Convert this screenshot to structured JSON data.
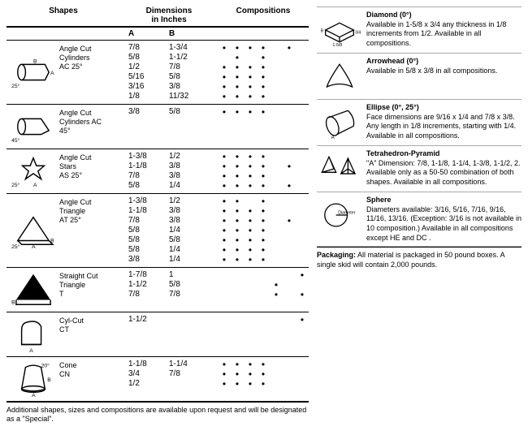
{
  "header": {
    "shapes": "Shapes",
    "dimensions": "Dimensions\nin Inches",
    "compositions": "Compositions",
    "colA": "A",
    "colB": "B"
  },
  "shapes": [
    {
      "name": "Angle Cut\nCylinders\nAC 25°",
      "svg": "cyl25",
      "rows": [
        {
          "a": "7/8",
          "b": "1-3/4",
          "dots": [
            1,
            1,
            1,
            1,
            0,
            1,
            0
          ]
        },
        {
          "a": "5/8",
          "b": "1-1/2",
          "dots": [
            0,
            1,
            0,
            1,
            0,
            0,
            0
          ]
        },
        {
          "a": "1/2",
          "b": "7/8",
          "dots": [
            1,
            1,
            1,
            1,
            0,
            0,
            0
          ]
        },
        {
          "a": "5/16",
          "b": "5/8",
          "dots": [
            1,
            1,
            1,
            1,
            0,
            0,
            0
          ]
        },
        {
          "a": "3/16",
          "b": "3/8",
          "dots": [
            1,
            1,
            1,
            1,
            0,
            0,
            0
          ]
        },
        {
          "a": "1/8",
          "b": "11/32",
          "dots": [
            1,
            1,
            1,
            1,
            0,
            0,
            0
          ]
        }
      ]
    },
    {
      "name": "Angle Cut\nCylinders AC\n45°",
      "svg": "cyl45",
      "rows": [
        {
          "a": "3/8",
          "b": "5/8",
          "dots": [
            1,
            1,
            1,
            1,
            0,
            0,
            0
          ]
        }
      ]
    },
    {
      "name": "Angle Cut\nStars\nAS 25°",
      "svg": "star",
      "rows": [
        {
          "a": "1-3/8",
          "b": "1/2",
          "dots": [
            1,
            1,
            1,
            1,
            0,
            0,
            0
          ]
        },
        {
          "a": "1-1/8",
          "b": "3/8",
          "dots": [
            1,
            1,
            1,
            1,
            0,
            1,
            0
          ]
        },
        {
          "a": "7/8",
          "b": "3/8",
          "dots": [
            1,
            1,
            1,
            1,
            0,
            0,
            0
          ]
        },
        {
          "a": "5/8",
          "b": "1/4",
          "dots": [
            1,
            1,
            1,
            1,
            0,
            1,
            0
          ]
        }
      ]
    },
    {
      "name": "Angle Cut\nTriangle\nAT 25°",
      "svg": "tri25",
      "rows": [
        {
          "a": "1-3/8",
          "b": "1/2",
          "dots": [
            1,
            1,
            0,
            1,
            0,
            0,
            0
          ]
        },
        {
          "a": "1-1/8",
          "b": "3/8",
          "dots": [
            1,
            1,
            1,
            1,
            0,
            0,
            0
          ]
        },
        {
          "a": "7/8",
          "b": "3/8",
          "dots": [
            1,
            1,
            1,
            1,
            0,
            1,
            0
          ]
        },
        {
          "a": "5/8",
          "b": "1/4",
          "dots": [
            1,
            1,
            1,
            1,
            0,
            0,
            0
          ]
        },
        {
          "a": "5/8",
          "b": "5/8",
          "dots": [
            1,
            1,
            1,
            1,
            0,
            0,
            0
          ]
        },
        {
          "a": "5/8",
          "b": "1/4",
          "dots": [
            1,
            1,
            1,
            1,
            0,
            0,
            0
          ]
        },
        {
          "a": "3/8",
          "b": "1/4",
          "dots": [
            1,
            1,
            1,
            1,
            0,
            0,
            0
          ]
        }
      ]
    },
    {
      "name": "Straight Cut\nTriangle\nT",
      "svg": "triS",
      "rows": [
        {
          "a": "1-7/8",
          "b": "1",
          "dots": [
            0,
            0,
            0,
            0,
            0,
            0,
            1
          ]
        },
        {
          "a": "1-1/2",
          "b": "5/8",
          "dots": [
            0,
            0,
            0,
            0,
            1,
            0,
            0
          ]
        },
        {
          "a": "7/8",
          "b": "7/8",
          "dots": [
            0,
            0,
            0,
            0,
            1,
            0,
            1
          ]
        }
      ]
    },
    {
      "name": "Cyl-Cut\nCT",
      "svg": "cylcut",
      "rows": [
        {
          "a": "1-1/2",
          "b": "",
          "dots": [
            0,
            0,
            0,
            0,
            0,
            0,
            1
          ]
        }
      ]
    },
    {
      "name": "Cone\nCN",
      "svg": "cone",
      "rows": [
        {
          "a": "1-1/8",
          "b": "1-1/4",
          "dots": [
            1,
            1,
            1,
            1,
            0,
            0,
            0
          ]
        },
        {
          "a": "3/4",
          "b": "7/8",
          "dots": [
            1,
            1,
            1,
            1,
            0,
            0,
            0
          ]
        },
        {
          "a": "1/2",
          "b": "",
          "dots": [
            1,
            1,
            1,
            1,
            0,
            0,
            0
          ]
        }
      ]
    }
  ],
  "footnote": "Additional shapes, sizes and compositions are available upon request and will be designated as a \"Special\".",
  "right": [
    {
      "title": "Diamond (0°)",
      "svg": "diamond",
      "text": "Available in 1-5/8 x 3/4 any thickness in 1/8 increments from 1/2. Available in all compositions."
    },
    {
      "title": "Arrowhead (0°)",
      "svg": "arrowhead",
      "text": "Available in 5/8 x 3/8 in all compositions."
    },
    {
      "title": "Ellipse (0°, 25°)",
      "svg": "ellipse",
      "text": "Face dimensions are 9/16 x 1/4 and 7/8 x 3/8. Any length in 1/8 increments, starting with 1/4. Available in all compositions."
    },
    {
      "title": "Tetrahedron-Pyramid",
      "svg": "tetra",
      "text": "\"A\" Dimension: 7/8, 1-1/8, 1-1/4, 1-3/8, 1-1/2, 2. Available only as a 50-50 combination of both shapes. Available in all compositions."
    },
    {
      "title": "Sphere",
      "svg": "sphere",
      "text": "Diameters available: 3/16, 5/16, 7/16, 9/16, 11/16, 13/16. (Exception: 3/16 is not available in 10 composition.) Available in all compositions except HE and DC ."
    }
  ],
  "packaging": {
    "label": "Packaging:",
    "text": "All material is packaged in 50 pound boxes. A single skid will contain 2,000 pounds."
  }
}
